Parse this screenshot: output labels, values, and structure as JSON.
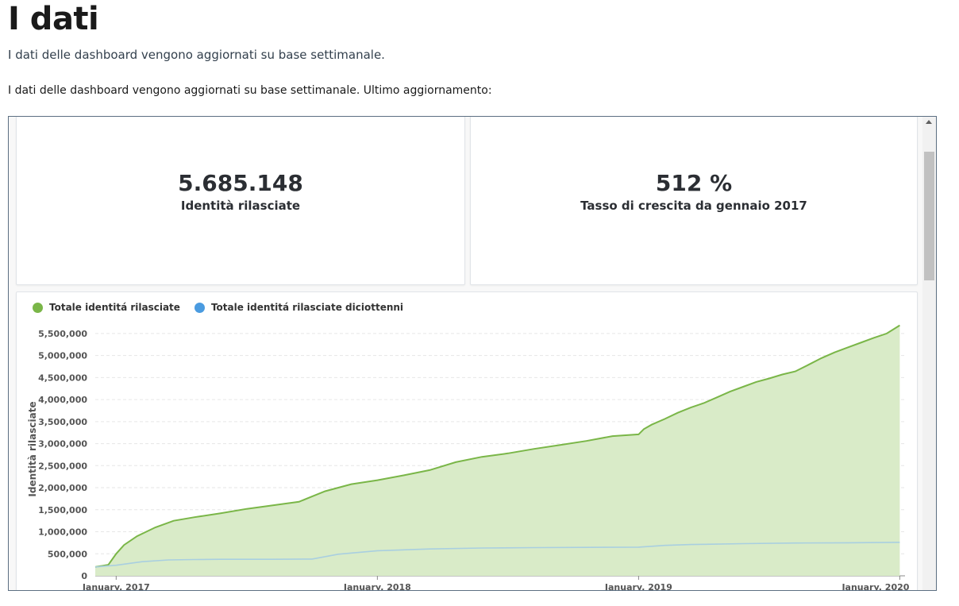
{
  "header": {
    "title": "I dati",
    "subtitle": "I dati delle dashboard vengono aggiornati su base settimanale.",
    "intro": "I dati delle dashboard vengono aggiornati su base settimanale. Ultimo aggiornamento:"
  },
  "kpis": [
    {
      "value": "5.685.148",
      "label": "Identità rilasciate"
    },
    {
      "value": "512 %",
      "label": "Tasso di crescita da gennaio 2017"
    }
  ],
  "colors": {
    "green": "#7ab648",
    "green_fill": "#d9ebc8",
    "blue": "#4a9be0",
    "blue_line": "#a9cfe0"
  },
  "chart_data": {
    "type": "area",
    "ylabel": "Identità rilasciate",
    "xlabel": "",
    "ylim": [
      0,
      5750000
    ],
    "xlim": [
      2016.92,
      2020.02
    ],
    "yticks": [
      0,
      500000,
      1000000,
      1500000,
      2000000,
      2500000,
      3000000,
      3500000,
      4000000,
      4500000,
      5000000,
      5500000
    ],
    "ytick_labels": [
      "0",
      "500,000",
      "1,000,000",
      "1,500,000",
      "2,000,000",
      "2,500,000",
      "3,000,000",
      "3,500,000",
      "4,000,000",
      "4,500,000",
      "5,000,000",
      "5,500,000"
    ],
    "xticks": [
      2017.0,
      2018.0,
      2019.0,
      2020.0
    ],
    "xtick_labels": [
      "January, 2017",
      "January, 2018",
      "January, 2019",
      "January, 2020"
    ],
    "grid": true,
    "legend_position": "top-left",
    "series": [
      {
        "name": "Totale identitá rilasciate",
        "color": "#7ab648",
        "x": [
          2016.92,
          2016.97,
          2017.0,
          2017.03,
          2017.08,
          2017.15,
          2017.22,
          2017.3,
          2017.4,
          2017.5,
          2017.6,
          2017.7,
          2017.75,
          2017.8,
          2017.9,
          2018.0,
          2018.1,
          2018.2,
          2018.3,
          2018.4,
          2018.5,
          2018.6,
          2018.7,
          2018.8,
          2018.9,
          2019.0,
          2019.02,
          2019.05,
          2019.1,
          2019.15,
          2019.2,
          2019.25,
          2019.3,
          2019.35,
          2019.4,
          2019.45,
          2019.5,
          2019.55,
          2019.6,
          2019.65,
          2019.7,
          2019.75,
          2019.8,
          2019.85,
          2019.9,
          2019.95,
          2020.0
        ],
        "values": [
          200000,
          250000,
          500000,
          700000,
          900000,
          1100000,
          1250000,
          1330000,
          1420000,
          1520000,
          1600000,
          1680000,
          1800000,
          1920000,
          2080000,
          2170000,
          2280000,
          2400000,
          2580000,
          2700000,
          2780000,
          2880000,
          2970000,
          3060000,
          3170000,
          3210000,
          3330000,
          3430000,
          3560000,
          3700000,
          3820000,
          3920000,
          4050000,
          4180000,
          4290000,
          4400000,
          4480000,
          4570000,
          4640000,
          4790000,
          4940000,
          5070000,
          5180000,
          5290000,
          5400000,
          5500000,
          5685148
        ]
      },
      {
        "name": "Totale identitá rilasciate diciottenni",
        "color": "#4a9be0",
        "x": [
          2016.92,
          2017.0,
          2017.1,
          2017.2,
          2017.3,
          2017.4,
          2017.5,
          2017.6,
          2017.75,
          2017.85,
          2018.0,
          2018.2,
          2018.4,
          2018.6,
          2018.8,
          2019.0,
          2019.1,
          2019.2,
          2019.4,
          2019.6,
          2019.8,
          2020.0
        ],
        "values": [
          200000,
          240000,
          320000,
          360000,
          370000,
          375000,
          375000,
          375000,
          380000,
          490000,
          570000,
          610000,
          630000,
          640000,
          645000,
          650000,
          690000,
          710000,
          730000,
          745000,
          750000,
          760000
        ]
      }
    ]
  }
}
